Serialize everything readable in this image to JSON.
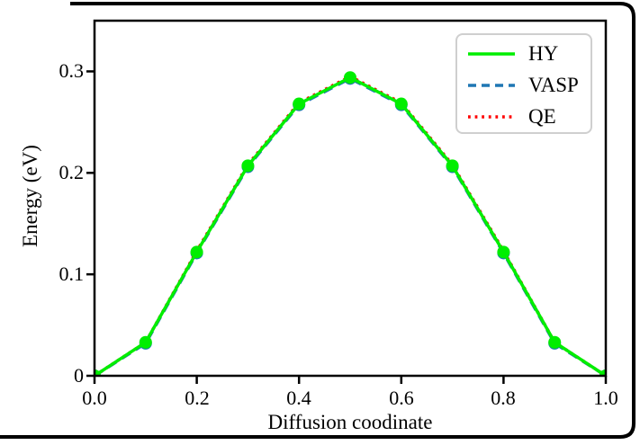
{
  "figure": {
    "frame_color": "#000000",
    "axis_color": "#000000",
    "background": "#ffffff"
  },
  "chart_data": {
    "type": "line",
    "title": "",
    "xlabel": "Diffusion coodinate",
    "ylabel": "Energy (eV)",
    "x": [
      0.0,
      0.1,
      0.2,
      0.3,
      0.4,
      0.5,
      0.6,
      0.7,
      0.8,
      0.9,
      1.0
    ],
    "series": [
      {
        "name": "HY",
        "color": "#00ee00",
        "linestyle": "solid",
        "marker": "circle",
        "values": [
          0.0,
          0.033,
          0.122,
          0.207,
          0.268,
          0.294,
          0.268,
          0.207,
          0.122,
          0.033,
          0.0
        ]
      },
      {
        "name": "VASP",
        "color": "#1f77b4",
        "linestyle": "dashed",
        "marker": "circle",
        "values": [
          0.0,
          0.032,
          0.121,
          0.206,
          0.267,
          0.293,
          0.267,
          0.206,
          0.121,
          0.032,
          0.0
        ]
      },
      {
        "name": "QE",
        "color": "#ff0000",
        "linestyle": "dotted",
        "marker": "circle",
        "values": [
          0.0,
          0.033,
          0.123,
          0.208,
          0.269,
          0.295,
          0.269,
          0.208,
          0.123,
          0.033,
          0.0
        ]
      }
    ],
    "xlim": [
      0.0,
      1.0
    ],
    "ylim": [
      0.0,
      0.35
    ],
    "xticks": [
      "0.0",
      "0.2",
      "0.4",
      "0.6",
      "0.8",
      "1.0"
    ],
    "xtick_values": [
      0.0,
      0.2,
      0.4,
      0.6,
      0.8,
      1.0
    ],
    "yticks": [
      "0",
      "0.1",
      "0.2",
      "0.3"
    ],
    "ytick_values": [
      0.0,
      0.1,
      0.2,
      0.3
    ],
    "grid": false,
    "legend_position": "upper right"
  }
}
